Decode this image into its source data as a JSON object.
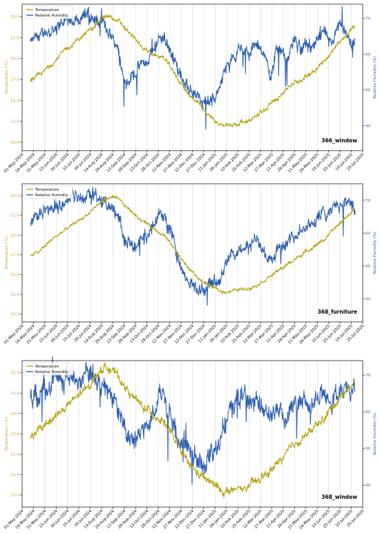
{
  "colors": {
    "temperature": "#b5a514",
    "temperature_dark": "#c7930c",
    "humidity": "#2d5fb0",
    "grid": "#d9d9d9",
    "axis": "#000000",
    "temp_axis_label": "#c8a020",
    "hum_axis_label": "#2d5fb0"
  },
  "shared": {
    "legend": [
      "Temperature",
      "Relative Humidity"
    ],
    "y_left_label": "Temperature (°C)",
    "y_right_label": "Relative Humidity (%)",
    "x_ticks": [
      "01-May-2024",
      "16-May-2024",
      "31-May-2024",
      "15-Jun-2024",
      "30-Jun-2024",
      "15-Jul-2024",
      "30-Jul-2024",
      "14-Aug-2024",
      "29-Aug-2024",
      "13-Sep-2024",
      "28-Sep-2024",
      "13-Oct-2024",
      "28-Oct-2024",
      "12-Nov-2024",
      "27-Nov-2024",
      "12-Dec-2024",
      "27-Dec-2024",
      "11-Jan-2025",
      "26-Jan-2025",
      "10-Feb-2025",
      "25-Feb-2025",
      "12-Mar-2025",
      "27-Mar-2025",
      "11-Apr-2025",
      "26-Apr-2025",
      "11-May-2025",
      "26-May-2025",
      "10-Jun-2025",
      "25-Jun-2025",
      "10-Jul-2025",
      "25-Jul-2025"
    ]
  },
  "chart_data": [
    {
      "type": "line",
      "label": "366_window",
      "x_range": [
        "2024-05-01",
        "2025-07-25"
      ],
      "y_left_ticks": [
        "10.0",
        "12.5",
        "15.0",
        "17.5",
        "20.0",
        "22.5",
        "25.0"
      ],
      "y_right_ticks": [
        "40",
        "50",
        "60",
        "70"
      ],
      "ylim_left": [
        9.0,
        26.5
      ],
      "ylim_right": [
        33,
        74
      ],
      "series": [
        {
          "name": "Temperature",
          "axis": "left",
          "x": [
            "2024-05-12",
            "2024-05-25",
            "2024-06-10",
            "2024-06-25",
            "2024-07-10",
            "2024-07-25",
            "2024-08-05",
            "2024-08-15",
            "2024-08-25",
            "2024-09-05",
            "2024-09-20",
            "2024-10-05",
            "2024-10-20",
            "2024-11-05",
            "2024-11-20",
            "2024-12-05",
            "2024-12-20",
            "2025-01-05",
            "2025-01-20",
            "2025-02-05",
            "2025-02-20",
            "2025-03-05",
            "2025-03-20",
            "2025-04-05",
            "2025-04-20",
            "2025-05-05",
            "2025-05-20",
            "2025-06-05",
            "2025-06-20",
            "2025-07-05",
            "2025-07-15"
          ],
          "y": [
            17.5,
            18.0,
            19.5,
            20.8,
            22.0,
            23.0,
            24.0,
            24.8,
            25.0,
            24.5,
            23.0,
            21.5,
            20.5,
            20.0,
            18.0,
            16.0,
            14.5,
            13.0,
            12.0,
            12.2,
            12.5,
            13.0,
            14.0,
            15.5,
            16.8,
            17.5,
            18.5,
            19.8,
            21.5,
            23.0,
            23.8
          ]
        },
        {
          "name": "Relative Humidity",
          "axis": "right",
          "x": [
            "2024-05-12",
            "2024-05-25",
            "2024-06-10",
            "2024-06-25",
            "2024-07-10",
            "2024-07-25",
            "2024-08-05",
            "2024-08-15",
            "2024-08-25",
            "2024-09-05",
            "2024-09-15",
            "2024-09-25",
            "2024-10-05",
            "2024-10-15",
            "2024-10-25",
            "2024-11-05",
            "2024-11-15",
            "2024-11-25",
            "2024-12-05",
            "2024-12-15",
            "2024-12-25",
            "2025-01-05",
            "2025-01-15",
            "2025-01-25",
            "2025-02-05",
            "2025-02-15",
            "2025-02-25",
            "2025-03-05",
            "2025-03-15",
            "2025-03-25",
            "2025-04-05",
            "2025-04-15",
            "2025-04-25",
            "2025-05-05",
            "2025-05-15",
            "2025-05-25",
            "2025-06-05",
            "2025-06-15",
            "2025-06-25",
            "2025-07-05",
            "2025-07-15"
          ],
          "y": [
            63,
            65,
            67,
            69,
            70,
            71,
            70,
            68,
            66,
            62,
            52,
            55,
            57,
            58,
            64,
            65,
            60,
            55,
            50,
            49,
            46,
            47,
            50,
            56,
            60,
            62,
            59,
            64,
            60,
            55,
            62,
            57,
            64,
            61,
            62,
            63,
            65,
            62,
            68,
            64,
            62
          ]
        }
      ]
    },
    {
      "type": "line",
      "label": "368_furniture",
      "x_range": [
        "2024-05-01",
        "2025-07-25"
      ],
      "y_left_ticks": [
        "10.0",
        "12.5",
        "15.0",
        "17.5",
        "20.0",
        "22.5",
        "25.0"
      ],
      "y_right_ticks": [
        "40",
        "50",
        "60",
        "70"
      ],
      "ylim_left": [
        9.0,
        26.5
      ],
      "ylim_right": [
        33,
        75
      ],
      "series": [
        {
          "name": "Temperature",
          "axis": "left",
          "x": [
            "2024-05-12",
            "2024-05-25",
            "2024-06-10",
            "2024-06-25",
            "2024-07-10",
            "2024-07-25",
            "2024-08-05",
            "2024-08-15",
            "2024-08-25",
            "2024-09-05",
            "2024-09-20",
            "2024-10-05",
            "2024-10-20",
            "2024-11-05",
            "2024-11-20",
            "2024-12-05",
            "2024-12-20",
            "2025-01-05",
            "2025-01-20",
            "2025-02-05",
            "2025-02-20",
            "2025-03-05",
            "2025-03-20",
            "2025-04-05",
            "2025-04-20",
            "2025-05-05",
            "2025-05-20",
            "2025-06-05",
            "2025-06-20",
            "2025-07-05",
            "2025-07-15"
          ],
          "y": [
            17.3,
            18.0,
            19.5,
            20.5,
            21.5,
            22.5,
            23.5,
            24.3,
            24.8,
            24.5,
            23.2,
            22.0,
            21.0,
            20.0,
            18.0,
            16.0,
            14.5,
            13.5,
            12.8,
            13.0,
            13.2,
            13.6,
            14.5,
            15.5,
            16.5,
            17.5,
            18.5,
            19.5,
            21.0,
            22.5,
            23.3
          ]
        },
        {
          "name": "Relative Humidity",
          "axis": "right",
          "x": [
            "2024-05-12",
            "2024-05-25",
            "2024-06-10",
            "2024-06-25",
            "2024-07-10",
            "2024-07-25",
            "2024-08-05",
            "2024-08-15",
            "2024-08-25",
            "2024-09-05",
            "2024-09-15",
            "2024-09-25",
            "2024-10-05",
            "2024-10-15",
            "2024-10-25",
            "2024-11-05",
            "2024-11-15",
            "2024-11-25",
            "2024-12-05",
            "2024-12-15",
            "2024-12-25",
            "2025-01-05",
            "2025-01-15",
            "2025-01-25",
            "2025-02-05",
            "2025-02-15",
            "2025-02-25",
            "2025-03-05",
            "2025-03-15",
            "2025-03-25",
            "2025-04-05",
            "2025-04-15",
            "2025-04-25",
            "2025-05-05",
            "2025-05-15",
            "2025-05-25",
            "2025-06-05",
            "2025-06-15",
            "2025-06-25",
            "2025-07-05",
            "2025-07-15"
          ],
          "y": [
            63,
            66,
            68,
            70,
            71,
            72,
            71,
            70,
            68,
            65,
            58,
            55,
            58,
            60,
            65,
            66,
            60,
            50,
            45,
            44,
            43,
            46,
            47,
            50,
            54,
            56,
            55,
            58,
            55,
            52,
            56,
            57,
            60,
            62,
            63,
            64,
            66,
            68,
            69,
            70,
            67
          ]
        }
      ]
    },
    {
      "type": "line",
      "label": "368_window",
      "x_range": [
        "2024-05-01",
        "2025-07-25"
      ],
      "y_left_ticks": [
        "10.0",
        "12.5",
        "15.0",
        "17.5",
        "20.0",
        "22.5",
        "25.0"
      ],
      "y_right_ticks": [
        "40",
        "50",
        "60",
        "70"
      ],
      "ylim_left": [
        8.5,
        26.5
      ],
      "ylim_right": [
        34,
        74
      ],
      "series": [
        {
          "name": "Temperature",
          "axis": "left",
          "x": [
            "2024-05-12",
            "2024-05-25",
            "2024-06-10",
            "2024-06-25",
            "2024-07-10",
            "2024-07-25",
            "2024-08-05",
            "2024-08-15",
            "2024-08-25",
            "2024-09-05",
            "2024-09-20",
            "2024-10-05",
            "2024-10-20",
            "2024-11-05",
            "2024-11-20",
            "2024-12-05",
            "2024-12-20",
            "2025-01-05",
            "2025-01-20",
            "2025-02-05",
            "2025-02-20",
            "2025-03-05",
            "2025-03-20",
            "2025-04-05",
            "2025-04-20",
            "2025-05-05",
            "2025-05-20",
            "2025-06-05",
            "2025-06-20",
            "2025-07-05",
            "2025-07-15"
          ],
          "y": [
            17.0,
            18.0,
            19.5,
            20.5,
            21.8,
            23.0,
            24.5,
            25.5,
            25.8,
            24.5,
            22.5,
            21.0,
            20.0,
            19.0,
            16.5,
            14.0,
            12.5,
            11.5,
            10.5,
            10.5,
            10.8,
            11.5,
            12.5,
            14.0,
            15.5,
            17.0,
            18.0,
            19.5,
            21.5,
            23.0,
            24.0
          ]
        },
        {
          "name": "Relative Humidity",
          "axis": "right",
          "x": [
            "2024-05-12",
            "2024-05-25",
            "2024-06-10",
            "2024-06-25",
            "2024-07-10",
            "2024-07-25",
            "2024-08-05",
            "2024-08-15",
            "2024-08-25",
            "2024-09-05",
            "2024-09-15",
            "2024-09-25",
            "2024-10-05",
            "2024-10-15",
            "2024-10-25",
            "2024-11-05",
            "2024-11-15",
            "2024-11-25",
            "2024-12-05",
            "2024-12-15",
            "2024-12-25",
            "2025-01-05",
            "2025-01-15",
            "2025-01-25",
            "2025-02-05",
            "2025-02-15",
            "2025-02-25",
            "2025-03-05",
            "2025-03-15",
            "2025-03-25",
            "2025-04-05",
            "2025-04-15",
            "2025-04-25",
            "2025-05-05",
            "2025-05-15",
            "2025-05-25",
            "2025-06-05",
            "2025-06-15",
            "2025-06-25",
            "2025-07-05",
            "2025-07-15"
          ],
          "y": [
            64,
            66,
            68,
            69,
            70,
            70,
            69,
            67,
            65,
            60,
            55,
            52,
            56,
            58,
            63,
            64,
            58,
            50,
            48,
            46,
            44,
            48,
            52,
            58,
            62,
            64,
            62,
            63,
            61,
            58,
            62,
            60,
            64,
            63,
            62,
            64,
            66,
            63,
            65,
            67,
            65
          ]
        }
      ]
    }
  ]
}
